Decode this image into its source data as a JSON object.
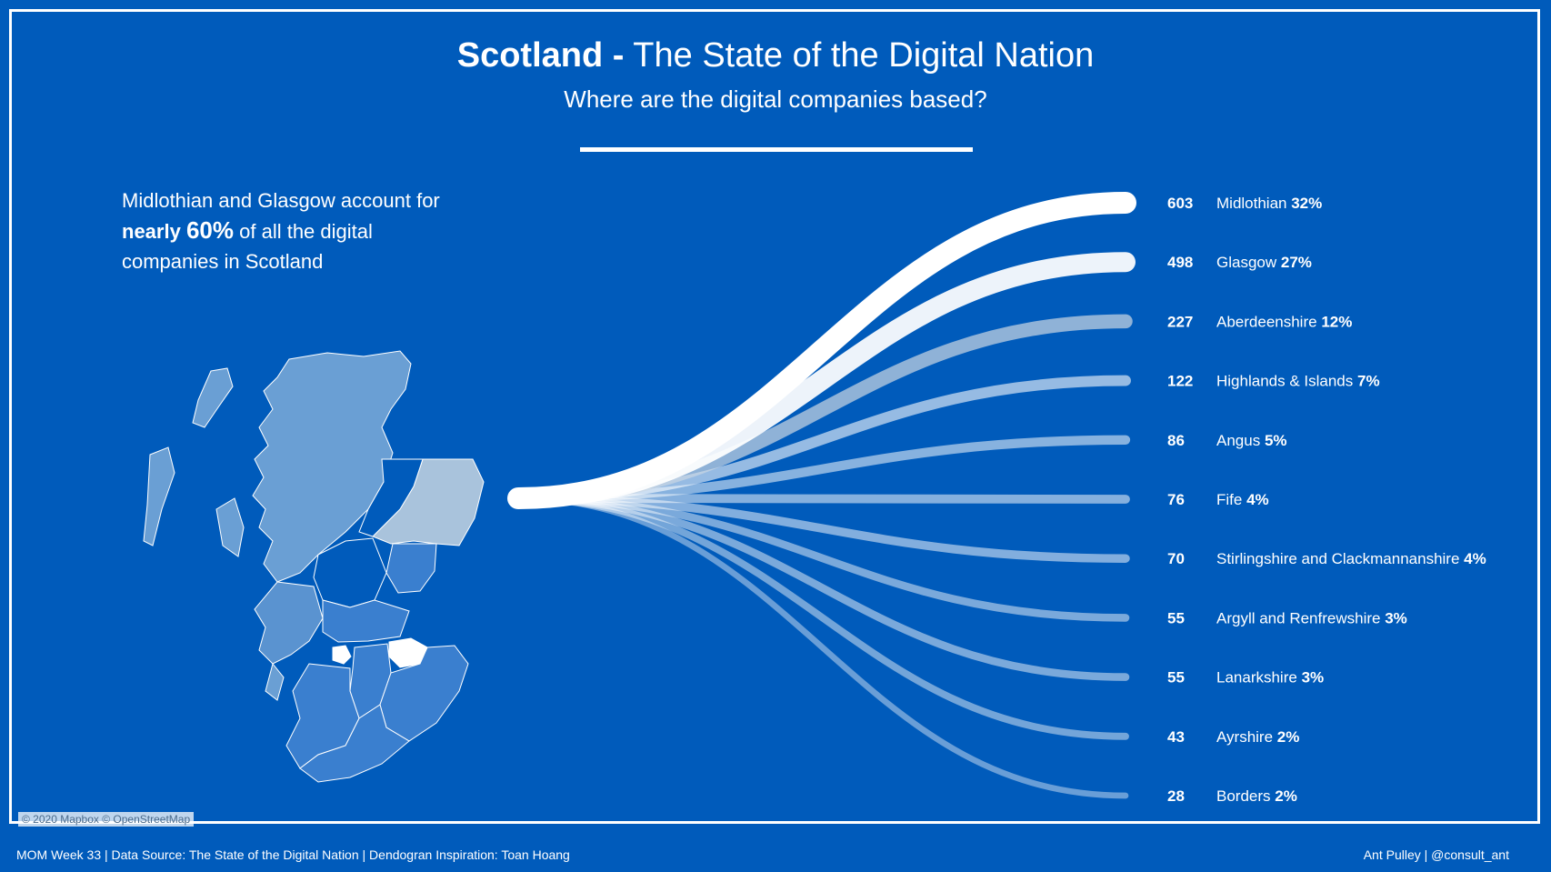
{
  "header": {
    "title_bold": "Scotland -",
    "title_rest": "The State of the Digital Nation",
    "subtitle": "Where are the digital companies based?"
  },
  "annotation": {
    "line1": "Midlothian and Glasgow account for",
    "bold_word": "nearly",
    "big_value": "60%",
    "line2_rest": "of all the digital",
    "line3": "companies in Scotland"
  },
  "map": {
    "credit": "© 2020 Mapbox © OpenStreetMap"
  },
  "footer": {
    "left": "MOM Week 33 | Data Source: The State of the Digital Nation | Dendogran Inspiration: Toan Hoang",
    "right": "Ant Pulley | @consult_ant"
  },
  "colors": {
    "background": "#005bbb",
    "top_line": "#ffffff",
    "map_fill": "#6a9fd4",
    "map_highlight": "#ffffff"
  },
  "chart_data": {
    "type": "dendrogram",
    "title": "Scotland - The State of the Digital Nation",
    "subtitle": "Where are the digital companies based?",
    "categories": [
      "Midlothian",
      "Glasgow",
      "Aberdeenshire",
      "Highlands & Islands",
      "Angus",
      "Fife",
      "Stirlingshire and Clackmannanshire",
      "Argyll and Renfrewshire",
      "Lanarkshire",
      "Ayrshire",
      "Borders"
    ],
    "values": [
      603,
      498,
      227,
      122,
      86,
      76,
      70,
      55,
      55,
      43,
      28
    ],
    "percent_labels": [
      "32%",
      "27%",
      "12%",
      "7%",
      "5%",
      "4%",
      "4%",
      "3%",
      "3%",
      "2%",
      "2%"
    ],
    "value_labels": [
      "603",
      "498",
      "227",
      "122",
      "86",
      "76",
      "70",
      "55",
      "55",
      "43",
      "28"
    ]
  }
}
